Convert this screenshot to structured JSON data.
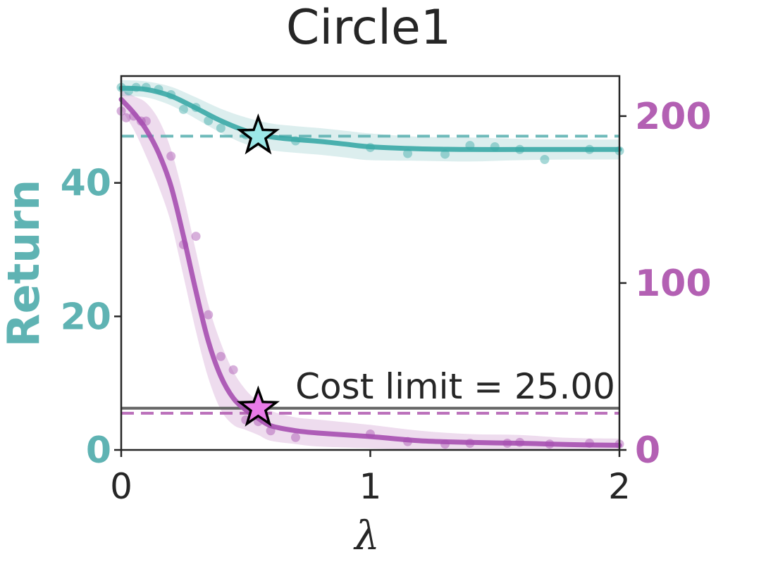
{
  "chart_data": {
    "type": "line",
    "title": "Circle1",
    "xlabel": "λ",
    "ylabel_left": "Return",
    "ylabel_right": "",
    "xlim": [
      0,
      2
    ],
    "ylim_left": [
      0,
      56
    ],
    "ylim_right": [
      0,
      224
    ],
    "xticks": [
      "0",
      "1",
      "2"
    ],
    "xtick_values": [
      0,
      1,
      2
    ],
    "yticks_left": [
      "0",
      "20",
      "40"
    ],
    "ytick_values_left": [
      0,
      20,
      40
    ],
    "yticks_right": [
      "0",
      "100",
      "200"
    ],
    "ytick_values_right": [
      0,
      100,
      200
    ],
    "grid": false,
    "colors": {
      "return": "#5fb3b3",
      "return_line": "#3aa8a6",
      "cost": "#b360b3",
      "cost_line": "#a64fb0",
      "limit": "#666666",
      "star_return": "#9ce8e8",
      "star_cost": "#e87be8"
    },
    "series": [
      {
        "name": "Return",
        "axis": "left",
        "x": [
          0,
          0.1,
          0.2,
          0.3,
          0.4,
          0.5,
          0.6,
          0.7,
          0.8,
          0.9,
          1.0,
          1.2,
          1.4,
          1.6,
          1.8,
          2.0
        ],
        "values": [
          54.2,
          54.0,
          53.0,
          51.2,
          49.3,
          47.8,
          46.9,
          46.5,
          46.2,
          45.8,
          45.4,
          45.1,
          45.0,
          45.0,
          45.0,
          45.0
        ],
        "band_half_width": [
          1.2,
          1.2,
          1.4,
          1.6,
          1.8,
          2.0,
          2.0,
          2.0,
          2.0,
          2.0,
          2.0,
          1.8,
          1.8,
          1.6,
          1.5,
          1.5
        ],
        "points": [
          [
            0.0,
            54.3
          ],
          [
            0.03,
            53.8
          ],
          [
            0.06,
            54.3
          ],
          [
            0.1,
            54.3
          ],
          [
            0.15,
            54.0
          ],
          [
            0.2,
            53.2
          ],
          [
            0.25,
            51.0
          ],
          [
            0.3,
            51.3
          ],
          [
            0.35,
            49.3
          ],
          [
            0.4,
            48.2
          ],
          [
            0.5,
            47.2
          ],
          [
            0.55,
            46.6
          ],
          [
            0.7,
            46.3
          ],
          [
            1.0,
            45.3
          ],
          [
            1.15,
            44.4
          ],
          [
            1.3,
            44.3
          ],
          [
            1.4,
            45.6
          ],
          [
            1.5,
            45.4
          ],
          [
            1.6,
            45.0
          ],
          [
            1.7,
            43.5
          ],
          [
            1.88,
            45.0
          ],
          [
            2.0,
            44.8
          ]
        ],
        "reference": 47.0,
        "star": [
          0.55,
          47.0
        ]
      },
      {
        "name": "Cost",
        "axis": "right",
        "x": [
          0,
          0.05,
          0.1,
          0.15,
          0.2,
          0.25,
          0.3,
          0.35,
          0.4,
          0.45,
          0.5,
          0.55,
          0.6,
          0.7,
          0.8,
          1.0,
          1.2,
          1.4,
          1.6,
          1.8,
          2.0
        ],
        "values": [
          210,
          202,
          192,
          178,
          158,
          128,
          95,
          65,
          44,
          31,
          24,
          19,
          14.5,
          11.5,
          10,
          8,
          5.5,
          4.5,
          4,
          3.2,
          2.8
        ],
        "band_half_width": [
          6,
          10,
          16,
          20,
          22,
          24,
          24,
          22,
          20,
          16,
          12,
          10,
          9,
          8,
          8,
          7,
          6,
          5,
          5,
          4,
          4
        ],
        "points": [
          [
            0.0,
            203
          ],
          [
            0.02,
            199
          ],
          [
            0.05,
            200
          ],
          [
            0.08,
            197
          ],
          [
            0.1,
            197
          ],
          [
            0.2,
            176
          ],
          [
            0.25,
            123
          ],
          [
            0.3,
            128
          ],
          [
            0.35,
            81
          ],
          [
            0.4,
            56
          ],
          [
            0.45,
            48
          ],
          [
            0.5,
            18
          ],
          [
            0.55,
            17
          ],
          [
            0.6,
            11.5
          ],
          [
            0.7,
            7.5
          ],
          [
            1.0,
            9.5
          ],
          [
            1.15,
            5
          ],
          [
            1.3,
            3.5
          ],
          [
            1.4,
            4
          ],
          [
            1.55,
            4
          ],
          [
            1.6,
            4.5
          ],
          [
            1.72,
            3.5
          ],
          [
            1.88,
            4
          ],
          [
            2.0,
            3.5
          ]
        ],
        "reference": 22.0,
        "star": [
          0.55,
          25.0
        ]
      }
    ],
    "annotations": [
      {
        "text": "Cost limit = 25.00",
        "x": 2.0,
        "y": 25.0,
        "axis": "right",
        "align": "right"
      }
    ],
    "horizontal_lines": [
      {
        "label": "Cost limit",
        "value": 25.0,
        "axis": "right",
        "style": "solid"
      }
    ]
  }
}
